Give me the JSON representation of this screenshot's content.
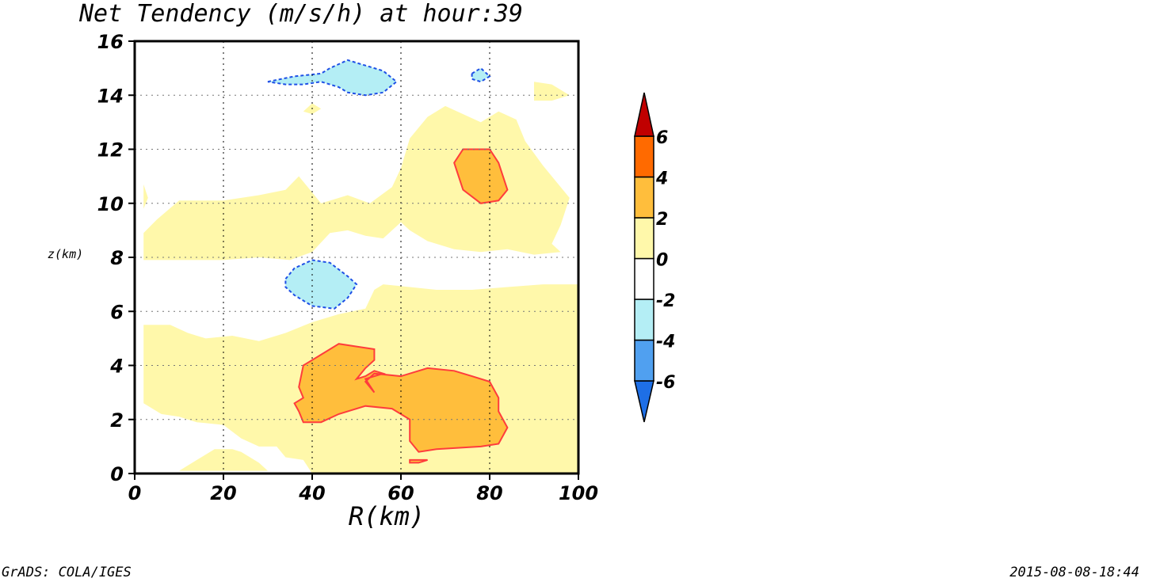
{
  "chart_data": {
    "type": "contour",
    "title": "Net Tendency (m/s/h) at hour:39",
    "xlabel": "R(km)",
    "ylabel": "z(km)",
    "xlim": [
      0,
      100
    ],
    "ylim": [
      0,
      16
    ],
    "x_ticks": [
      "0",
      "20",
      "40",
      "60",
      "80",
      "100"
    ],
    "y_ticks": [
      "0",
      "2",
      "4",
      "6",
      "8",
      "10",
      "12",
      "14",
      "16"
    ],
    "grid": "dotted",
    "colorbar": {
      "position": "right",
      "levels": [
        "-6",
        "-4",
        "-2",
        "0",
        "2",
        "4",
        "6"
      ],
      "colors": [
        "#1e6fe6",
        "#50a0f0",
        "#b4eef5",
        "#ffffff",
        "#fff8aa",
        "#ffbe3c",
        "#ff6a00",
        "#c00000"
      ]
    },
    "regions": [
      {
        "class": "0 to 2",
        "fill": "#fff8aa",
        "shapes": [
          [
            [
              2,
              8.9
            ],
            [
              5,
              9.4
            ],
            [
              10,
              10.1
            ],
            [
              20,
              10.1
            ],
            [
              28,
              10.3
            ],
            [
              34,
              10.5
            ],
            [
              37,
              11.0
            ],
            [
              39,
              10.6
            ],
            [
              42,
              10.0
            ],
            [
              48,
              10.3
            ],
            [
              53,
              10.0
            ],
            [
              58,
              10.6
            ],
            [
              60,
              11.3
            ],
            [
              62,
              12.4
            ],
            [
              66,
              13.2
            ],
            [
              70,
              13.6
            ],
            [
              74,
              13.3
            ],
            [
              78,
              13.0
            ],
            [
              82,
              13.4
            ],
            [
              86,
              13.1
            ],
            [
              88,
              12.3
            ],
            [
              92,
              11.4
            ],
            [
              96,
              10.6
            ],
            [
              98,
              10.2
            ],
            [
              96,
              9.2
            ],
            [
              94,
              8.5
            ],
            [
              96,
              8.2
            ],
            [
              90,
              8.1
            ],
            [
              84,
              8.3
            ],
            [
              78,
              8.2
            ],
            [
              72,
              8.3
            ],
            [
              66,
              8.6
            ],
            [
              62,
              9.0
            ],
            [
              60,
              9.3
            ],
            [
              58,
              9.0
            ],
            [
              56,
              8.7
            ],
            [
              52,
              8.8
            ],
            [
              48,
              9.0
            ],
            [
              44,
              8.9
            ],
            [
              40,
              8.2
            ],
            [
              35,
              7.9
            ],
            [
              28,
              8.0
            ],
            [
              20,
              7.9
            ],
            [
              10,
              7.9
            ],
            [
              2,
              7.9
            ]
          ],
          [
            [
              2,
              5.5
            ],
            [
              8,
              5.5
            ],
            [
              12,
              5.2
            ],
            [
              16,
              5.0
            ],
            [
              22,
              5.1
            ],
            [
              28,
              4.9
            ],
            [
              34,
              5.2
            ],
            [
              40,
              5.6
            ],
            [
              46,
              5.9
            ],
            [
              52,
              6.1
            ],
            [
              54,
              6.8
            ],
            [
              56,
              7.0
            ],
            [
              62,
              6.9
            ],
            [
              68,
              6.8
            ],
            [
              76,
              6.8
            ],
            [
              84,
              6.9
            ],
            [
              92,
              7.0
            ],
            [
              100,
              7.0
            ],
            [
              100,
              3.4
            ],
            [
              96,
              3.3
            ],
            [
              92,
              3.7
            ],
            [
              90,
              4.0
            ],
            [
              92,
              4.3
            ],
            [
              98,
              4.0
            ],
            [
              100,
              4.0
            ],
            [
              100,
              0
            ],
            [
              40,
              0
            ],
            [
              38,
              0.5
            ],
            [
              34,
              0.6
            ],
            [
              32,
              1.0
            ],
            [
              28,
              1.0
            ],
            [
              24,
              1.3
            ],
            [
              20,
              1.8
            ],
            [
              14,
              1.9
            ],
            [
              10,
              2.1
            ],
            [
              6,
              2.2
            ],
            [
              2,
              2.6
            ]
          ],
          [
            [
              10,
              0.1
            ],
            [
              14,
              0.5
            ],
            [
              18,
              0.9
            ],
            [
              22,
              0.9
            ],
            [
              24,
              0.8
            ],
            [
              28,
              0.4
            ],
            [
              30,
              0.1
            ],
            [
              20,
              0.1
            ]
          ],
          [
            [
              90,
              14.5
            ],
            [
              94,
              14.4
            ],
            [
              98,
              14.0
            ],
            [
              94,
              13.8
            ],
            [
              90,
              13.8
            ]
          ],
          [
            [
              38,
              13.4
            ],
            [
              40,
              13.7
            ],
            [
              42,
              13.5
            ],
            [
              40,
              13.3
            ]
          ],
          [
            [
              2,
              10.7
            ],
            [
              3,
              10.2
            ],
            [
              2,
              9.8
            ]
          ]
        ]
      },
      {
        "class": "2 to 4",
        "fill": "#ffbe3c",
        "stroke": "#ff3c3c",
        "shapes": [
          [
            [
              38,
              1.9
            ],
            [
              42,
              1.9
            ],
            [
              46,
              2.2
            ],
            [
              52,
              2.5
            ],
            [
              58,
              2.4
            ],
            [
              62,
              2.0
            ],
            [
              62,
              1.2
            ],
            [
              64,
              0.8
            ],
            [
              68,
              0.9
            ],
            [
              78,
              1.0
            ],
            [
              82,
              1.1
            ],
            [
              84,
              1.7
            ],
            [
              82,
              2.3
            ],
            [
              82,
              2.8
            ],
            [
              80,
              3.4
            ],
            [
              76,
              3.6
            ],
            [
              72,
              3.8
            ],
            [
              66,
              3.9
            ],
            [
              60,
              3.6
            ],
            [
              54,
              3.7
            ],
            [
              52,
              3.4
            ],
            [
              54,
              3.0
            ],
            [
              52,
              3.5
            ],
            [
              56,
              3.7
            ],
            [
              54,
              3.8
            ],
            [
              52,
              3.6
            ],
            [
              50,
              3.5
            ],
            [
              52,
              3.9
            ],
            [
              54,
              4.2
            ],
            [
              54,
              4.6
            ],
            [
              50,
              4.7
            ],
            [
              46,
              4.8
            ],
            [
              42,
              4.4
            ],
            [
              40,
              4.2
            ],
            [
              38,
              4.0
            ],
            [
              37,
              3.2
            ],
            [
              38,
              2.8
            ],
            [
              36,
              2.6
            ],
            [
              37,
              2.3
            ]
          ],
          [
            [
              72,
              11.5
            ],
            [
              74,
              12.0
            ],
            [
              80,
              12.0
            ],
            [
              82,
              11.5
            ],
            [
              84,
              10.5
            ],
            [
              82,
              10.1
            ],
            [
              78,
              10.0
            ],
            [
              74,
              10.5
            ]
          ],
          [
            [
              62,
              0.5
            ],
            [
              66,
              0.5
            ],
            [
              64,
              0.4
            ],
            [
              62,
              0.4
            ]
          ]
        ]
      },
      {
        "class": "-4 to -2",
        "fill": "#b4eef5",
        "stroke": "#1e4fe6",
        "shapes": [
          [
            [
              34,
              7.2
            ],
            [
              36,
              7.6
            ],
            [
              40,
              7.9
            ],
            [
              44,
              7.8
            ],
            [
              48,
              7.3
            ],
            [
              50,
              7.0
            ],
            [
              48,
              6.5
            ],
            [
              45,
              6.1
            ],
            [
              40,
              6.2
            ],
            [
              36,
              6.6
            ],
            [
              34,
              6.9
            ]
          ],
          [
            [
              30,
              14.5
            ],
            [
              36,
              14.7
            ],
            [
              42,
              14.8
            ],
            [
              44,
              15.0
            ],
            [
              48,
              15.3
            ],
            [
              52,
              15.1
            ],
            [
              56,
              14.9
            ],
            [
              59,
              14.5
            ],
            [
              56,
              14.1
            ],
            [
              52,
              14.0
            ],
            [
              48,
              14.1
            ],
            [
              46,
              14.3
            ],
            [
              42,
              14.5
            ],
            [
              38,
              14.4
            ],
            [
              34,
              14.4
            ]
          ],
          [
            [
              76,
              14.8
            ],
            [
              78,
              15.0
            ],
            [
              80,
              14.7
            ],
            [
              78,
              14.5
            ],
            [
              76,
              14.6
            ]
          ]
        ]
      }
    ]
  },
  "footer": {
    "left": "GrADS: COLA/IGES",
    "right": "2015-08-08-18:44"
  }
}
